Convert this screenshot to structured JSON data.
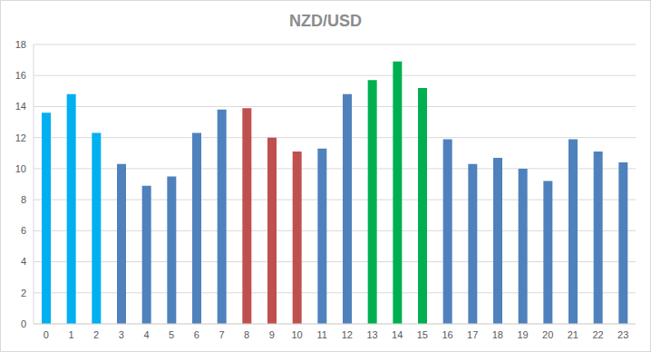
{
  "chart_data": {
    "type": "bar",
    "title": "NZD/USD",
    "categories": [
      "0",
      "1",
      "2",
      "3",
      "4",
      "5",
      "6",
      "7",
      "8",
      "9",
      "10",
      "11",
      "12",
      "13",
      "14",
      "15",
      "16",
      "17",
      "18",
      "19",
      "20",
      "21",
      "22",
      "23"
    ],
    "values": [
      13.6,
      14.8,
      12.3,
      10.3,
      8.9,
      9.5,
      12.3,
      13.8,
      13.9,
      12.0,
      11.1,
      11.3,
      14.8,
      15.7,
      16.9,
      15.2,
      11.9,
      10.3,
      10.7,
      10.0,
      9.2,
      11.9,
      11.1,
      10.4
    ],
    "colors": [
      "#00b0f0",
      "#00b0f0",
      "#00b0f0",
      "#4f81bd",
      "#4f81bd",
      "#4f81bd",
      "#4f81bd",
      "#4f81bd",
      "#c0504d",
      "#c0504d",
      "#c0504d",
      "#4f81bd",
      "#4f81bd",
      "#00b050",
      "#00b050",
      "#00b050",
      "#4f81bd",
      "#4f81bd",
      "#4f81bd",
      "#4f81bd",
      "#4f81bd",
      "#4f81bd",
      "#4f81bd",
      "#4f81bd"
    ],
    "ylim": [
      0,
      18
    ],
    "yticks": [
      0,
      2,
      4,
      6,
      8,
      10,
      12,
      14,
      16,
      18
    ],
    "grid": true
  }
}
